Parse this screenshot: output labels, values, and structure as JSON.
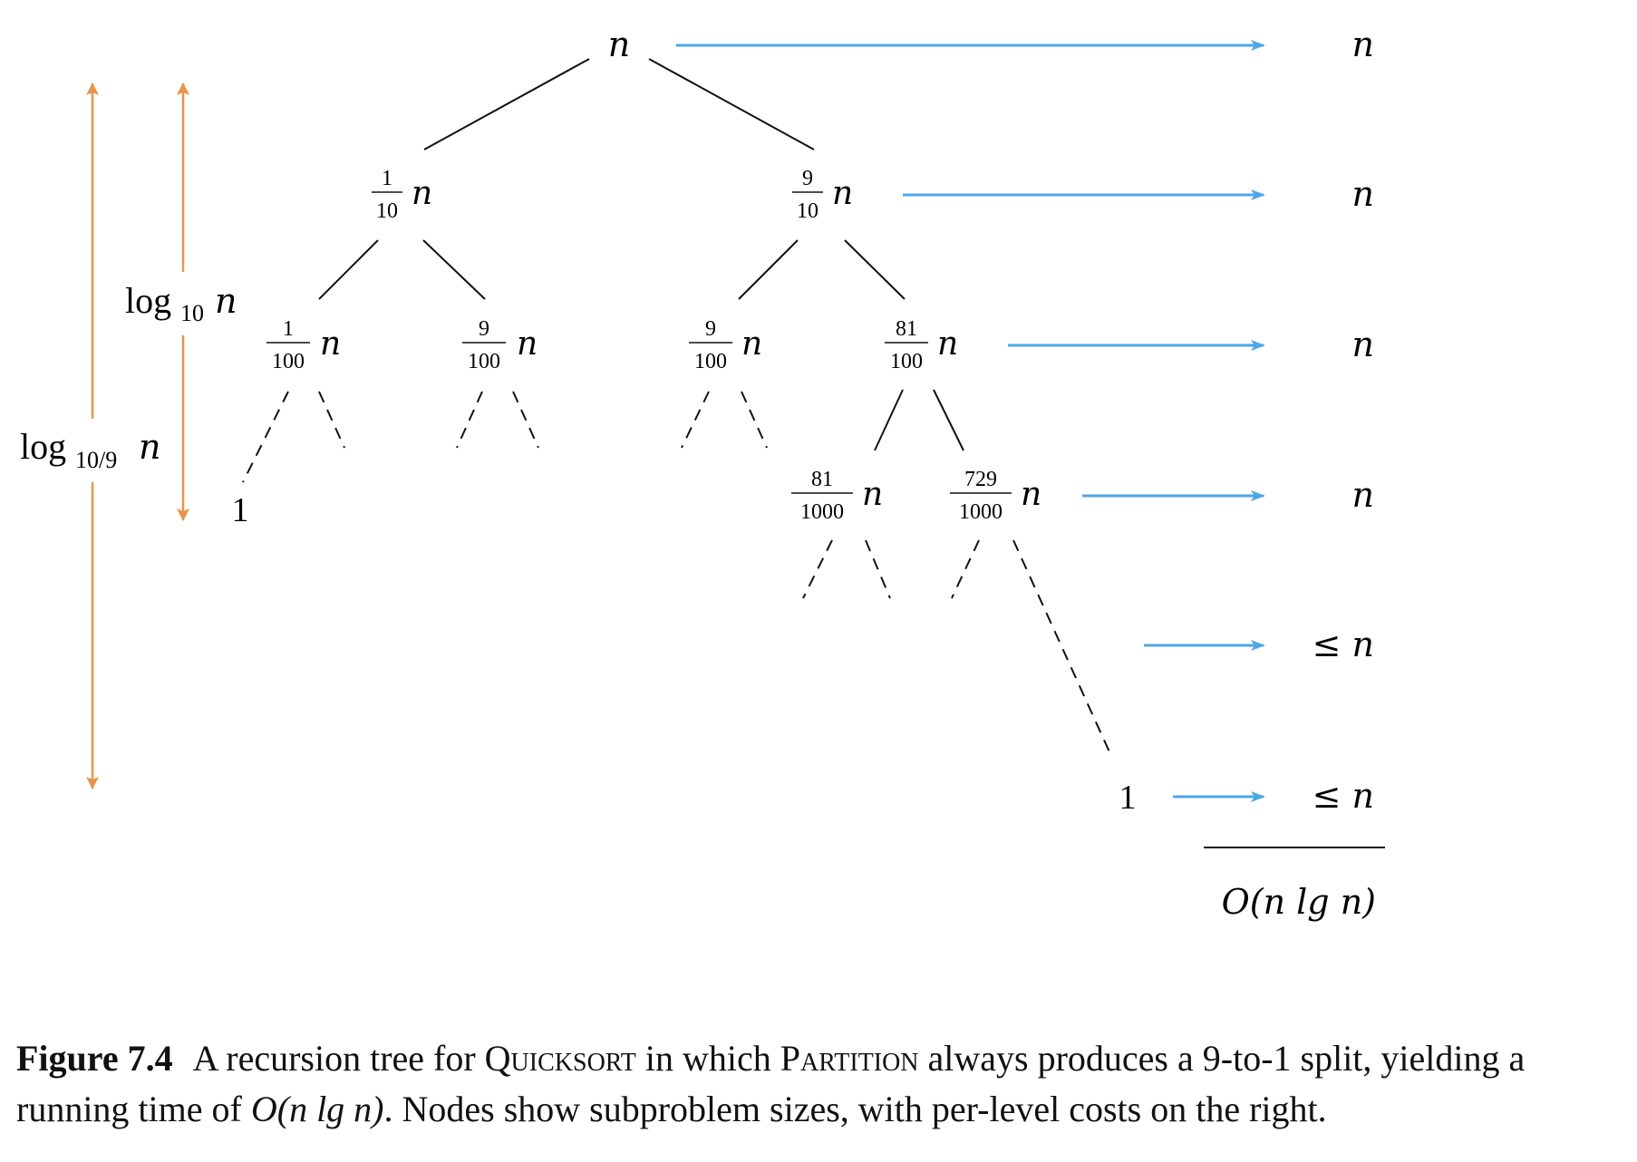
{
  "diagram": {
    "colors": {
      "line": "#111111",
      "arrow_blue": "#4da6e8",
      "arrow_orange": "#e8944a"
    },
    "root": {
      "label": "n"
    },
    "level1": [
      {
        "num": "1",
        "den": "10",
        "var": "n"
      },
      {
        "num": "9",
        "den": "10",
        "var": "n"
      }
    ],
    "level2": [
      {
        "num": "1",
        "den": "100",
        "var": "n"
      },
      {
        "num": "9",
        "den": "100",
        "var": "n"
      },
      {
        "num": "9",
        "den": "100",
        "var": "n"
      },
      {
        "num": "81",
        "den": "100",
        "var": "n"
      }
    ],
    "level3": [
      {
        "num": "81",
        "den": "1000",
        "var": "n"
      },
      {
        "num": "729",
        "den": "1000",
        "var": "n"
      }
    ],
    "leaf_left": "1",
    "leaf_right": "1",
    "level_costs": [
      "n",
      "n",
      "n",
      "n",
      "≤ n",
      "≤ n"
    ],
    "total": "O(n lg n)",
    "depth_short": {
      "base": "log",
      "sub": "10",
      "var": "n"
    },
    "depth_long": {
      "base": "log",
      "sub": "10/9",
      "var": "n"
    }
  },
  "caption": {
    "label": "Figure 7.4",
    "text_1": "A recursion tree for ",
    "quicksort": "Quicksort",
    "text_2": " in which ",
    "partition": "Partition",
    "text_3": " always produces a 9-to-1 split, yielding a running time of ",
    "math": "O(n lg n)",
    "text_4": ". Nodes show subproblem sizes, with per-level costs on the right."
  }
}
